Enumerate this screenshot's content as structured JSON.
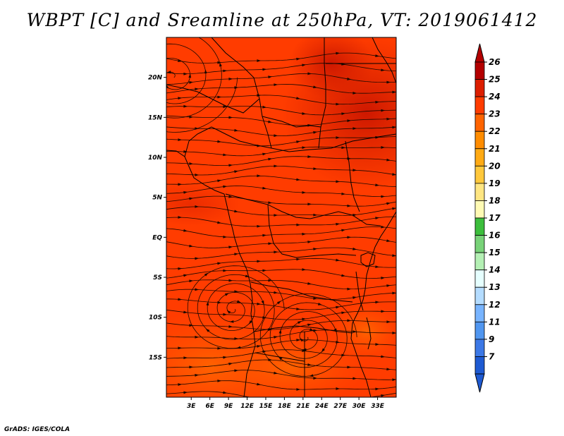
{
  "title": "WBPT [C] and Sreamline at 250hPa, VT: 2019061412",
  "credit": "GrADS: IGES/COLA",
  "map": {
    "lon_range": [
      -1,
      36
    ],
    "lat_range": [
      -20,
      25
    ],
    "lon_ticks": [
      "3E",
      "6E",
      "9E",
      "12E",
      "15E",
      "18E",
      "21E",
      "24E",
      "27E",
      "30E",
      "33E"
    ],
    "lat_ticks": [
      "20N",
      "15N",
      "10N",
      "5N",
      "EQ",
      "5S",
      "10S",
      "15S"
    ],
    "background_value_color": "#ff3c00",
    "cyclonic_centers": [
      {
        "lon": 9.8,
        "lat": -9.0
      },
      {
        "lon": 21.5,
        "lat": -12.5
      }
    ],
    "anticyclonic_center": {
      "lon": 0,
      "lat": 20
    }
  },
  "colorbar": {
    "labels": [
      "26",
      "25",
      "24",
      "23",
      "22",
      "21",
      "20",
      "19",
      "18",
      "17",
      "16",
      "15",
      "14",
      "13",
      "12",
      "11",
      "9",
      "7"
    ],
    "colors": [
      "#b40000",
      "#dc1e00",
      "#ff3c00",
      "#ff6400",
      "#ff8c00",
      "#ffaa14",
      "#ffc83c",
      "#ffe682",
      "#fffab4",
      "#3cbe3c",
      "#78d278",
      "#b4f0b4",
      "#e6ffff",
      "#b4dcff",
      "#78b4ff",
      "#5096f0",
      "#3c78e6",
      "#1e5ad2"
    ],
    "top_arrow_color": "#b40000",
    "bottom_arrow_color": "#1e5ad2"
  }
}
